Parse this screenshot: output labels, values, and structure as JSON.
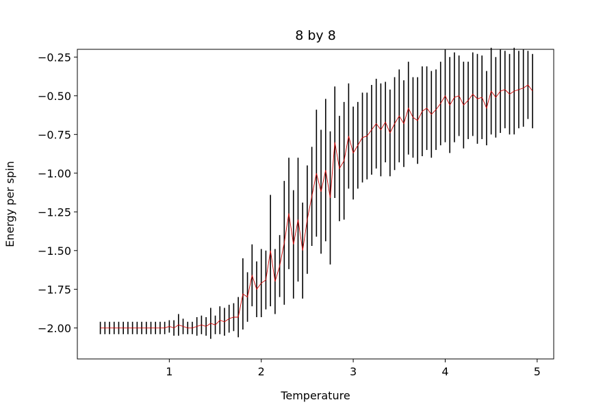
{
  "chart_data": {
    "type": "line",
    "title": "8 by 8",
    "xlabel": "Temperature",
    "ylabel": "Energy per spin",
    "xlim": [
      0.0,
      5.18
    ],
    "ylim": [
      -2.2,
      -0.2
    ],
    "xticks": [
      1,
      2,
      3,
      4,
      5
    ],
    "xtick_labels": [
      "1",
      "2",
      "3",
      "4",
      "5"
    ],
    "yticks": [
      -2.0,
      -1.75,
      -1.5,
      -1.25,
      -1.0,
      -0.75,
      -0.5,
      -0.25
    ],
    "ytick_labels": [
      "−2.00",
      "−1.75",
      "−1.50",
      "−1.25",
      "−1.00",
      "−0.75",
      "−0.50",
      "−0.25"
    ],
    "grid": false,
    "series": [
      {
        "color": "#cc0000",
        "errorbar_color": "#000000",
        "x": [
          0.25,
          0.3,
          0.35,
          0.4,
          0.45,
          0.5,
          0.55,
          0.6,
          0.65,
          0.7,
          0.75,
          0.8,
          0.85,
          0.9,
          0.95,
          1.0,
          1.05,
          1.1,
          1.15,
          1.2,
          1.25,
          1.3,
          1.35,
          1.4,
          1.45,
          1.5,
          1.55,
          1.6,
          1.65,
          1.7,
          1.75,
          1.8,
          1.85,
          1.9,
          1.95,
          2.0,
          2.05,
          2.1,
          2.15,
          2.2,
          2.25,
          2.3,
          2.35,
          2.4,
          2.45,
          2.5,
          2.55,
          2.6,
          2.65,
          2.7,
          2.75,
          2.8,
          2.85,
          2.9,
          2.95,
          3.0,
          3.05,
          3.1,
          3.15,
          3.2,
          3.25,
          3.3,
          3.35,
          3.4,
          3.45,
          3.5,
          3.55,
          3.6,
          3.65,
          3.7,
          3.75,
          3.8,
          3.85,
          3.9,
          3.95,
          4.0,
          4.05,
          4.1,
          4.15,
          4.2,
          4.25,
          4.3,
          4.35,
          4.4,
          4.45,
          4.5,
          4.55,
          4.6,
          4.65,
          4.7,
          4.75,
          4.8,
          4.85,
          4.9,
          4.95
        ],
        "y": [
          -2.0,
          -2.0,
          -2.0,
          -2.0,
          -2.0,
          -2.0,
          -2.0,
          -2.0,
          -2.0,
          -2.0,
          -2.0,
          -2.0,
          -2.0,
          -2.0,
          -2.0,
          -1.99,
          -2.0,
          -1.98,
          -1.99,
          -2.0,
          -2.0,
          -1.99,
          -1.98,
          -1.99,
          -1.97,
          -1.98,
          -1.95,
          -1.96,
          -1.94,
          -1.93,
          -1.93,
          -1.78,
          -1.8,
          -1.66,
          -1.75,
          -1.71,
          -1.69,
          -1.5,
          -1.7,
          -1.6,
          -1.45,
          -1.26,
          -1.46,
          -1.3,
          -1.5,
          -1.3,
          -1.15,
          -1.0,
          -1.12,
          -0.98,
          -1.16,
          -0.8,
          -0.97,
          -0.92,
          -0.76,
          -0.87,
          -0.82,
          -0.77,
          -0.76,
          -0.72,
          -0.68,
          -0.72,
          -0.67,
          -0.74,
          -0.68,
          -0.63,
          -0.68,
          -0.58,
          -0.64,
          -0.66,
          -0.6,
          -0.58,
          -0.62,
          -0.59,
          -0.55,
          -0.5,
          -0.56,
          -0.51,
          -0.5,
          -0.56,
          -0.53,
          -0.49,
          -0.52,
          -0.51,
          -0.58,
          -0.47,
          -0.51,
          -0.47,
          -0.46,
          -0.49,
          -0.47,
          -0.46,
          -0.45,
          -0.43,
          -0.47
        ],
        "yerr": [
          0.04,
          0.04,
          0.04,
          0.04,
          0.04,
          0.04,
          0.04,
          0.04,
          0.04,
          0.04,
          0.04,
          0.04,
          0.04,
          0.04,
          0.04,
          0.04,
          0.05,
          0.07,
          0.05,
          0.04,
          0.04,
          0.06,
          0.06,
          0.06,
          0.1,
          0.06,
          0.09,
          0.09,
          0.09,
          0.09,
          0.13,
          0.23,
          0.16,
          0.2,
          0.18,
          0.22,
          0.19,
          0.36,
          0.21,
          0.2,
          0.4,
          0.36,
          0.35,
          0.4,
          0.31,
          0.35,
          0.32,
          0.41,
          0.4,
          0.46,
          0.43,
          0.36,
          0.34,
          0.38,
          0.34,
          0.3,
          0.28,
          0.29,
          0.28,
          0.29,
          0.29,
          0.3,
          0.26,
          0.28,
          0.3,
          0.3,
          0.28,
          0.3,
          0.26,
          0.28,
          0.29,
          0.27,
          0.28,
          0.26,
          0.27,
          0.3,
          0.31,
          0.29,
          0.26,
          0.28,
          0.25,
          0.27,
          0.29,
          0.27,
          0.24,
          0.28,
          0.26,
          0.27,
          0.25,
          0.26,
          0.28,
          0.25,
          0.25,
          0.22,
          0.24
        ]
      }
    ]
  }
}
